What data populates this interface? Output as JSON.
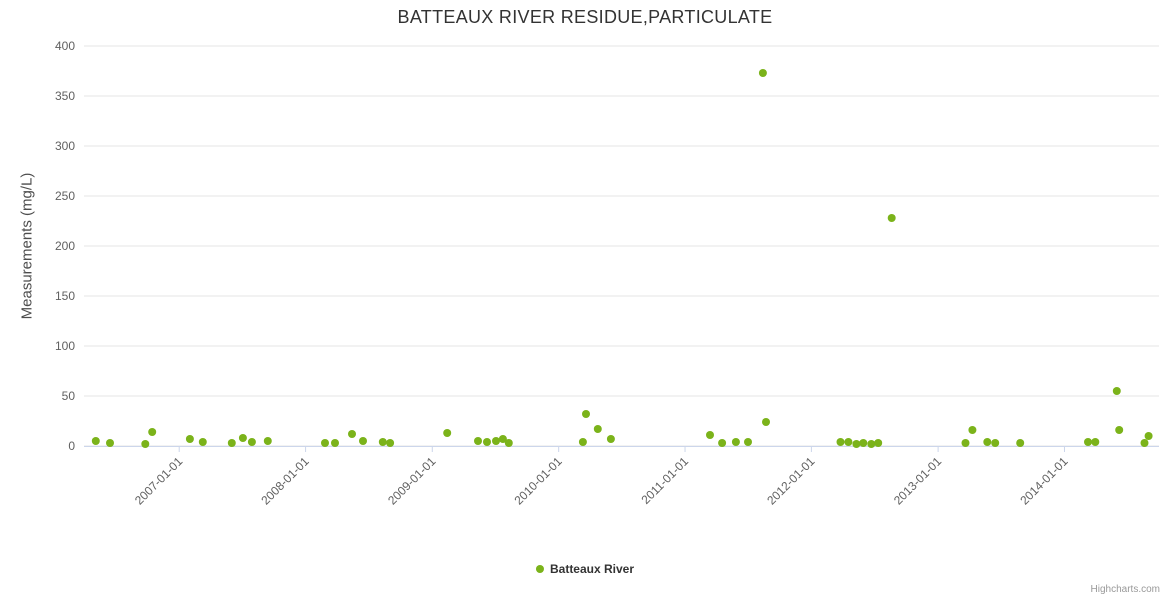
{
  "credits": "Highcharts.com",
  "chart_data": {
    "type": "scatter",
    "title": "BATTEAUX RIVER RESIDUE,PARTICULATE",
    "xlabel": "",
    "ylabel": "Measurements (mg/L)",
    "ylim": [
      0,
      400
    ],
    "ytick_interval": 50,
    "xrange": [
      "2006-04-01",
      "2014-10-01"
    ],
    "xticks": [
      "2007-01-01",
      "2008-01-01",
      "2009-01-01",
      "2010-01-01",
      "2011-01-01",
      "2012-01-01",
      "2013-01-01",
      "2014-01-01"
    ],
    "grid": "horizontal",
    "legend_position": "bottom-center",
    "series": [
      {
        "name": "Batteaux River",
        "color": "#7bb31a",
        "points": [
          [
            "2006-05-05",
            5
          ],
          [
            "2006-06-15",
            3
          ],
          [
            "2006-09-25",
            2
          ],
          [
            "2006-10-15",
            14
          ],
          [
            "2007-02-01",
            7
          ],
          [
            "2007-03-10",
            4
          ],
          [
            "2007-06-02",
            3
          ],
          [
            "2007-07-04",
            8
          ],
          [
            "2007-07-30",
            4
          ],
          [
            "2007-09-14",
            5
          ],
          [
            "2008-02-26",
            3
          ],
          [
            "2008-03-26",
            3
          ],
          [
            "2008-05-14",
            12
          ],
          [
            "2008-06-15",
            5
          ],
          [
            "2008-08-11",
            4
          ],
          [
            "2008-09-01",
            3
          ],
          [
            "2009-02-13",
            13
          ],
          [
            "2009-05-13",
            5
          ],
          [
            "2009-06-08",
            4
          ],
          [
            "2009-07-04",
            5
          ],
          [
            "2009-07-24",
            7
          ],
          [
            "2009-08-10",
            3
          ],
          [
            "2010-03-12",
            4
          ],
          [
            "2010-03-21",
            32
          ],
          [
            "2010-04-24",
            17
          ],
          [
            "2010-06-01",
            7
          ],
          [
            "2011-03-14",
            11
          ],
          [
            "2011-04-18",
            3
          ],
          [
            "2011-05-28",
            4
          ],
          [
            "2011-07-02",
            4
          ],
          [
            "2011-08-14",
            373
          ],
          [
            "2011-08-23",
            24
          ],
          [
            "2012-03-25",
            4
          ],
          [
            "2012-04-17",
            4
          ],
          [
            "2012-05-10",
            2
          ],
          [
            "2012-05-30",
            3
          ],
          [
            "2012-06-22",
            2
          ],
          [
            "2012-07-12",
            3
          ],
          [
            "2012-08-20",
            228
          ],
          [
            "2013-03-21",
            3
          ],
          [
            "2013-04-10",
            16
          ],
          [
            "2013-05-23",
            4
          ],
          [
            "2013-06-15",
            3
          ],
          [
            "2013-08-26",
            3
          ],
          [
            "2014-03-10",
            4
          ],
          [
            "2014-03-31",
            4
          ],
          [
            "2014-06-01",
            55
          ],
          [
            "2014-06-08",
            16
          ],
          [
            "2014-08-20",
            3
          ],
          [
            "2014-09-01",
            10
          ]
        ]
      }
    ]
  }
}
